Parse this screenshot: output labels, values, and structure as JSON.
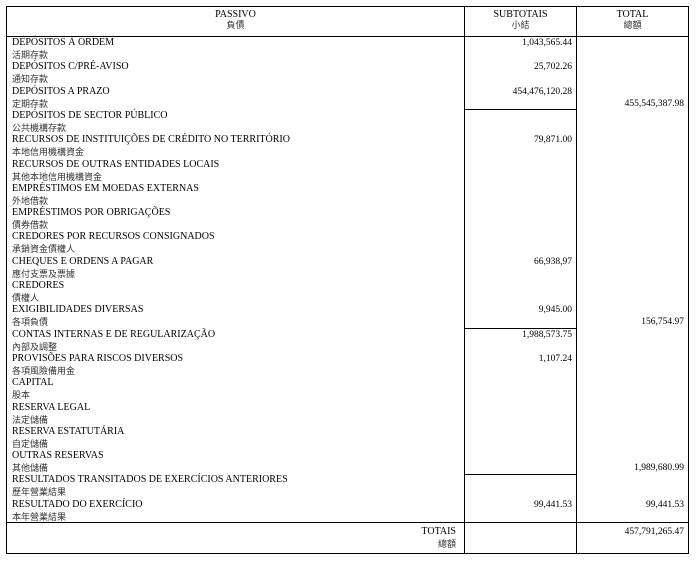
{
  "header": {
    "passivo": "PASSIVO",
    "passivo_zh": "負債",
    "subtotais": "SUBTOTAIS",
    "subtotais_zh": "小結",
    "total": "TOTAL",
    "total_zh": "總額"
  },
  "rows": [
    {
      "pt": "DEPÓSITOS À ORDEM",
      "zh": "活期存款",
      "subtotal": "1,043,565.44",
      "total": ""
    },
    {
      "pt": "DEPÓSITOS C/PRÉ-AVISO",
      "zh": "通知存款",
      "subtotal": "25,702.26",
      "total": ""
    },
    {
      "pt": "DEPÓSITOS A PRAZO",
      "zh": "定期存款",
      "subtotal": "454,476,120.28",
      "total": "455,545,387.98"
    },
    {
      "pt": "DEPÓSITOS DE SECTOR PÚBLICO",
      "zh": "公共機構存款",
      "subtotal": "",
      "total": ""
    },
    {
      "pt": "RECURSOS DE INSTITUIÇÕES DE CRÉDITO NO TERRITÓRIO",
      "zh": "本地信用機構資金",
      "subtotal": "79,871.00",
      "total": ""
    },
    {
      "pt": "RECURSOS DE OUTRAS ENTIDADES LOCAIS",
      "zh": "其他本地信用機構資金",
      "subtotal": "",
      "total": ""
    },
    {
      "pt": "EMPRÉSTIMOS EM MOEDAS EXTERNAS",
      "zh": "外地借款",
      "subtotal": "",
      "total": ""
    },
    {
      "pt": "EMPRÉSTIMOS POR OBRIGAÇÕES",
      "zh": "債券借款",
      "subtotal": "",
      "total": ""
    },
    {
      "pt": "CREDORES POR RECURSOS CONSIGNADOS",
      "zh": "承銷資金債權人",
      "subtotal": "",
      "total": ""
    },
    {
      "pt": "CHEQUES E ORDENS A PAGAR",
      "zh": "應付支票及票據",
      "subtotal": "66,938,97",
      "total": ""
    },
    {
      "pt": "CREDORES",
      "zh": "債權人",
      "subtotal": "",
      "total": ""
    },
    {
      "pt": "EXIGIBILIDADES DIVERSAS",
      "zh": "各項負債",
      "subtotal": "9,945.00",
      "total": "156,754.97"
    },
    {
      "pt": "CONTAS INTERNAS E DE REGULARIZAÇÃO",
      "zh": "內部及調整",
      "subtotal": "1,988,573.75",
      "total": ""
    },
    {
      "pt": "PROVISÕES PARA RISCOS DIVERSOS",
      "zh": "各項風險備用金",
      "subtotal": "1,107.24",
      "total": ""
    },
    {
      "pt": "CAPITAL",
      "zh": "股本",
      "subtotal": "",
      "total": ""
    },
    {
      "pt": "RESERVA LEGAL",
      "zh": "法定儲備",
      "subtotal": "",
      "total": ""
    },
    {
      "pt": "RESERVA ESTATUTÁRIA",
      "zh": "自定儲備",
      "subtotal": "",
      "total": ""
    },
    {
      "pt": "OUTRAS RESERVAS",
      "zh": "其他儲備",
      "subtotal": "",
      "total": "1,989,680.99"
    },
    {
      "pt": "RESULTADOS TRANSITADOS DE EXERCÍCIOS ANTERIORES",
      "zh": "歷年營業結果",
      "subtotal": "",
      "total": ""
    },
    {
      "pt": "RESULTADO DO EXERCÍCIO",
      "zh": "本年營業結果",
      "subtotal": "99,441.53",
      "total": "99,441.53"
    }
  ],
  "totals": {
    "label": "TOTAIS",
    "label_zh": "總額",
    "total": "457,791,265.47"
  }
}
